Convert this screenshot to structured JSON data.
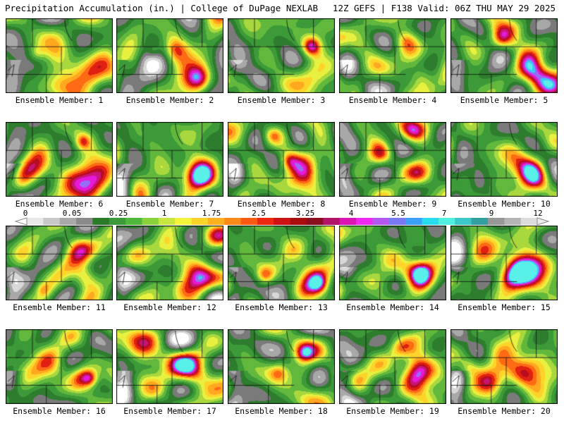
{
  "header": {
    "title_left": "Precipitation Accumulation (in.) | College of DuPage NEXLAB",
    "title_right": "12Z GEFS | F138 Valid: 06Z THU MAY 29 2025"
  },
  "panels": [
    {
      "label": "Ensemble Member: 1"
    },
    {
      "label": "Ensemble Member: 2"
    },
    {
      "label": "Ensemble Member: 3"
    },
    {
      "label": "Ensemble Member: 4"
    },
    {
      "label": "Ensemble Member: 5"
    },
    {
      "label": "Ensemble Member: 6"
    },
    {
      "label": "Ensemble Member: 7"
    },
    {
      "label": "Ensemble Member: 8"
    },
    {
      "label": "Ensemble Member: 9"
    },
    {
      "label": "Ensemble Member: 10"
    },
    {
      "label": "Ensemble Member: 11"
    },
    {
      "label": "Ensemble Member: 12"
    },
    {
      "label": "Ensemble Member: 13"
    },
    {
      "label": "Ensemble Member: 14"
    },
    {
      "label": "Ensemble Member: 15"
    },
    {
      "label": "Ensemble Member: 16"
    },
    {
      "label": "Ensemble Member: 17"
    },
    {
      "label": "Ensemble Member: 18"
    },
    {
      "label": "Ensemble Member: 19"
    },
    {
      "label": "Ensemble Member: 20"
    }
  ],
  "colorbar": {
    "labels": [
      "0",
      "0.05",
      "0.25",
      "1",
      "1.75",
      "2.5",
      "3.25",
      "4",
      "5.5",
      "7",
      "9",
      "12"
    ],
    "colors": [
      "#e8e8e8",
      "#c8c8c8",
      "#a8a8a8",
      "#8a8a8a",
      "#2a7a2a",
      "#3a9a3a",
      "#4fb83a",
      "#8ad23c",
      "#c8e640",
      "#f4f43c",
      "#ffd42a",
      "#ffb020",
      "#ff8a18",
      "#ff5a14",
      "#ee2810",
      "#cc1212",
      "#a80c0c",
      "#8a0e1e",
      "#b41468",
      "#dc14b4",
      "#f028f0",
      "#b456f0",
      "#7878f8",
      "#3ca0ff",
      "#28dcf0",
      "#50f0e0",
      "#3cc8c8",
      "#32a0a0",
      "#969696",
      "#b4b4b4",
      "#dcdcdc"
    ],
    "values": [
      0,
      0.05,
      0.25,
      1,
      1.75,
      2.5,
      3.25,
      4,
      5.5,
      7,
      9,
      12
    ]
  }
}
